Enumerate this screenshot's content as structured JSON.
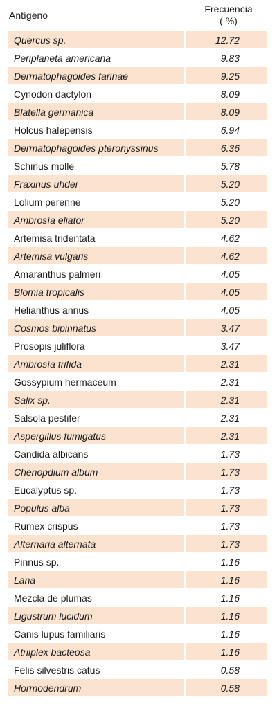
{
  "header": {
    "antigen": "Antígeno",
    "freq_line1": "Frecuencia",
    "freq_line2": "( %)"
  },
  "rows": [
    {
      "name": "Quercus sp.",
      "value": "12.72",
      "italic": true
    },
    {
      "name": "Periplaneta americana",
      "value": "9.83",
      "italic": true
    },
    {
      "name": "Dermatophagoides farinae",
      "value": "9.25",
      "italic": true
    },
    {
      "name": "Cynodon dactylon",
      "value": "8.09",
      "italic": false
    },
    {
      "name": "Blatella germanica",
      "value": "8.09",
      "italic": true
    },
    {
      "name": "Holcus halepensis",
      "value": "6.94",
      "italic": false
    },
    {
      "name": "Dermatophagoides pteronyssinus",
      "value": "6.36",
      "italic": true
    },
    {
      "name": "Schinus molle",
      "value": "5.78",
      "italic": false
    },
    {
      "name": "Fraxinus uhdei",
      "value": "5.20",
      "italic": true
    },
    {
      "name": "Lolium perenne",
      "value": "5.20",
      "italic": false
    },
    {
      "name": "Ambrosía eliator",
      "value": "5.20",
      "italic": true
    },
    {
      "name": "Artemisa tridentata",
      "value": "4.62",
      "italic": false
    },
    {
      "name": "Artemisa vulgaris",
      "value": "4.62",
      "italic": true
    },
    {
      "name": "Amaranthus palmeri",
      "value": "4.05",
      "italic": false
    },
    {
      "name": "Blomia tropicalis",
      "value": "4.05",
      "italic": true
    },
    {
      "name": "Helianthus annus",
      "value": "4.05",
      "italic": false
    },
    {
      "name": "Cosmos bipinnatus",
      "value": "3.47",
      "italic": true
    },
    {
      "name": "Prosopis juliflora",
      "value": "3.47",
      "italic": false
    },
    {
      "name": "Ambrosía trifida",
      "value": "2.31",
      "italic": true
    },
    {
      "name": "Gossypium hermaceum",
      "value": "2.31",
      "italic": false
    },
    {
      "name": "Salix sp.",
      "value": "2.31",
      "italic": true
    },
    {
      "name": "Salsola pestifer",
      "value": "2.31",
      "italic": false
    },
    {
      "name": "Aspergillus fumigatus",
      "value": "2.31",
      "italic": true
    },
    {
      "name": "Candida albicans",
      "value": "1.73",
      "italic": false
    },
    {
      "name": "Chenopdium album",
      "value": "1.73",
      "italic": true
    },
    {
      "name": "Eucalyptus sp.",
      "value": "1.73",
      "italic": false
    },
    {
      "name": "Populus alba",
      "value": "1.73",
      "italic": true
    },
    {
      "name": "Rumex crispus",
      "value": "1.73",
      "italic": false
    },
    {
      "name": "Alternaria alternata",
      "value": "1.73",
      "italic": true
    },
    {
      "name": "Pinnus sp.",
      "value": "1.16",
      "italic": false
    },
    {
      "name": "Lana",
      "value": "1.16",
      "italic": true
    },
    {
      "name": "Mezcla de plumas",
      "value": "1.16",
      "italic": false
    },
    {
      "name": "Ligustrum lucidum",
      "value": "1.16",
      "italic": true
    },
    {
      "name": "Canis lupus familiaris",
      "value": "1.16",
      "italic": false
    },
    {
      "name": "Atrilplex bacteosa",
      "value": "1.16",
      "italic": true
    },
    {
      "name": "Felis silvestris catus",
      "value": "0.58",
      "italic": false
    },
    {
      "name": "Hormodendrum",
      "value": "0.58",
      "italic": true
    }
  ],
  "colors": {
    "shade": "#fbe3cf",
    "text": "#1a1a1a"
  }
}
